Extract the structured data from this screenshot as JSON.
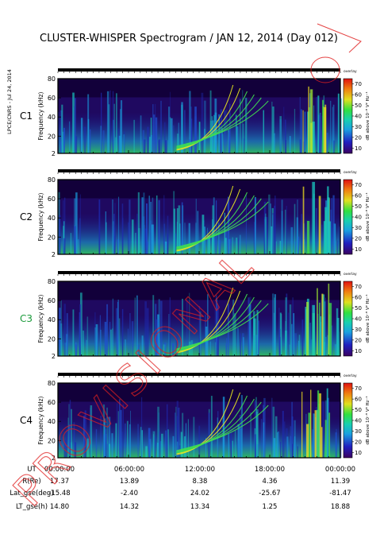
{
  "title": "CLUSTER-WHISPER Spectrogram / JAN 12, 2014 (Day 012)",
  "side_note": "LPCE/CNRS - Jul 24, 2014",
  "watermark": "PROVISIONAL",
  "y_axis_label": "Frequency (kHz)",
  "colorbar": {
    "label": "dB above 10⁻⁸ V² Hz⁻¹",
    "short_label": "overlay",
    "ticks": [
      "10",
      "20",
      "30",
      "40",
      "50",
      "60",
      "70"
    ]
  },
  "panels": [
    {
      "name": "C1",
      "color": "#000000",
      "yticks": [
        "2",
        "20",
        "40",
        "60",
        "80"
      ]
    },
    {
      "name": "C2",
      "color": "#000000",
      "yticks": [
        "2",
        "20",
        "40",
        "60",
        "80"
      ]
    },
    {
      "name": "C3",
      "color": "#1a9a3a",
      "yticks": [
        "2",
        "20",
        "40",
        "60",
        "80"
      ]
    },
    {
      "name": "C4",
      "color": "#000000",
      "yticks": [
        "2",
        "20",
        "40",
        "60",
        "80"
      ]
    }
  ],
  "ephemeris": {
    "times": [
      "00:00:00",
      "06:00:00",
      "12:00:00",
      "18:00:00",
      "00:00:00"
    ],
    "rows": [
      {
        "label": "UT",
        "values": [
          "",
          "",
          "",
          "",
          ""
        ]
      },
      {
        "label": "R(Re)",
        "values": [
          "17.37",
          "13.89",
          "8.38",
          "4.36",
          "11.39"
        ]
      },
      {
        "label": "Lat_gse(deg)",
        "values": [
          "-15.48",
          "-2.40",
          "24.02",
          "-25.67",
          "-81.47"
        ]
      },
      {
        "label": "LT_gse(h)",
        "values": [
          "14.80",
          "14.32",
          "13.34",
          "1.25",
          "18.88"
        ]
      }
    ]
  },
  "chart_data": {
    "type": "heatmap",
    "title": "CLUSTER-WHISPER Spectrogram / JAN 12, 2014 (Day 012)",
    "xlabel": "UT",
    "ylabel": "Frequency (kHz)",
    "x_ticks": [
      "00:00:00",
      "06:00:00",
      "12:00:00",
      "18:00:00",
      "00:00:00"
    ],
    "ylim": [
      2,
      80
    ],
    "colorbar_range": [
      10,
      70
    ],
    "colorbar_unit": "dB above 10⁻⁸ V² Hz⁻¹",
    "series": [
      {
        "name": "C1"
      },
      {
        "name": "C2"
      },
      {
        "name": "C3"
      },
      {
        "name": "C4"
      }
    ]
  },
  "colors": {
    "background_dark": "#12003a",
    "band_low": "#1e2ab0",
    "band_mid": "#19c8c0",
    "band_high": "#3fe04a",
    "band_peak": "#f0e020",
    "band_max": "#e01010",
    "watermark": "#e02020"
  }
}
